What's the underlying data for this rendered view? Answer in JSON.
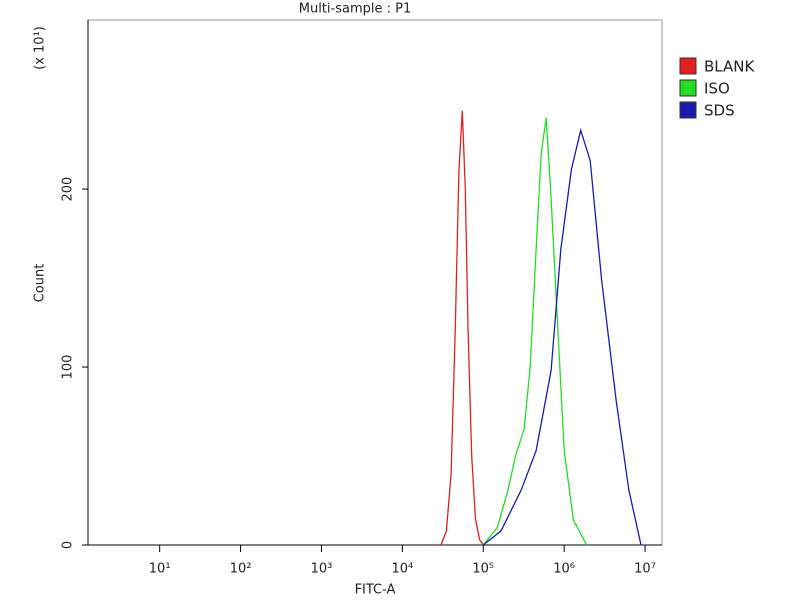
{
  "chart_data": {
    "type": "line",
    "title": "Multi-sample : P1",
    "x_label": "FITC-A",
    "y_label": "Count",
    "y_multiplier": "(x 10¹)",
    "x_log": true,
    "grid": false,
    "legend_position": "right",
    "xlim": [
      1.3,
      16200000
    ],
    "ylim": [
      0,
      295
    ],
    "xticks": [
      {
        "value": 10,
        "label": "10¹"
      },
      {
        "value": 100,
        "label": "10²"
      },
      {
        "value": 1000,
        "label": "10³"
      },
      {
        "value": 10000,
        "label": "10⁴"
      },
      {
        "value": 100000,
        "label": "10⁵"
      },
      {
        "value": 1000000,
        "label": "10⁶"
      },
      {
        "value": 10000000,
        "label": "10⁷"
      }
    ],
    "yticks": [
      0,
      100,
      200
    ],
    "series": [
      {
        "name": "BLANK",
        "color": "#e02020",
        "x": [
          30000,
          35000,
          40000,
          45000,
          50000,
          55000,
          60000,
          65000,
          72000,
          80000,
          90000,
          100000
        ],
        "values": [
          0,
          8,
          40,
          120,
          210,
          244,
          200,
          120,
          50,
          15,
          3,
          0
        ]
      },
      {
        "name": "ISO",
        "color": "#22dd22",
        "x": [
          100000,
          150000,
          200000,
          250000,
          320000,
          380000,
          450000,
          520000,
          600000,
          680000,
          800000,
          1000000,
          1300000,
          1900000
        ],
        "values": [
          0,
          10,
          30,
          50,
          65,
          100,
          166,
          220,
          240,
          200,
          138,
          53,
          14,
          0
        ]
      },
      {
        "name": "SDS",
        "color": "#1a1ab0",
        "x": [
          100000,
          166000,
          295000,
          450000,
          690000,
          910000,
          1230000,
          1600000,
          2100000,
          2900000,
          4400000,
          6300000,
          8900000
        ],
        "values": [
          0,
          8,
          31,
          53,
          98,
          166,
          211,
          233,
          216,
          149,
          81,
          31,
          0
        ]
      }
    ]
  }
}
